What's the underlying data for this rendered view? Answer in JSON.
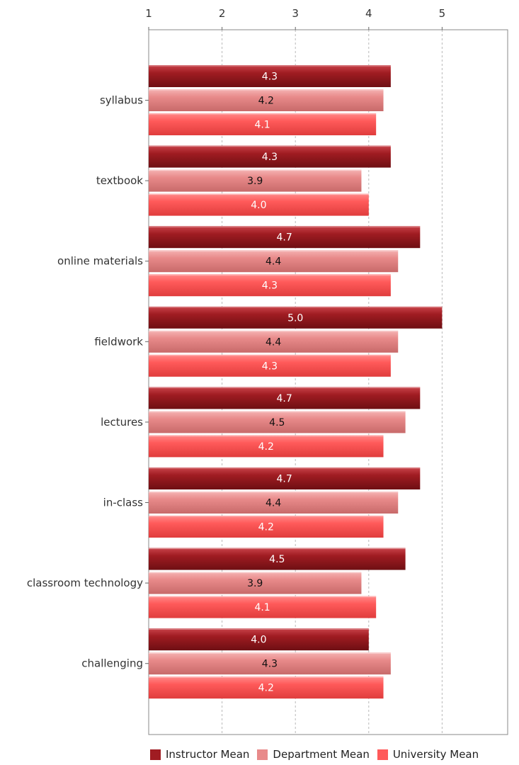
{
  "chart_data": {
    "type": "bar",
    "orientation": "horizontal",
    "xlim": [
      1,
      5
    ],
    "x_ticks": [
      "1",
      "2",
      "3",
      "4",
      "5"
    ],
    "grid": true,
    "legend_position": "bottom",
    "categories": [
      "syllabus",
      "textbook",
      "online materials",
      "fieldwork",
      "lectures",
      "in-class ",
      "classroom technology",
      "challenging"
    ],
    "series": [
      {
        "name": "Instructor Mean",
        "color": "#a01c22",
        "label_color": "#ffffff",
        "values": [
          4.3,
          4.3,
          4.7,
          5.0,
          4.7,
          4.7,
          4.5,
          4.0
        ],
        "labels": [
          "4.3",
          "4.3",
          "4.7",
          "5.0",
          "4.7",
          "4.7",
          "4.5",
          "4.0"
        ]
      },
      {
        "name": "Department Mean",
        "color": "#e88a8a",
        "label_color": "#111111",
        "values": [
          4.2,
          3.9,
          4.4,
          4.4,
          4.5,
          4.4,
          3.9,
          4.3
        ],
        "labels": [
          "4.2",
          "3.9",
          "4.4",
          "4.4",
          "4.5",
          "4.4",
          "3.9",
          "4.3"
        ]
      },
      {
        "name": "University Mean",
        "color": "#ff5a5a",
        "label_color": "#ffffff",
        "values": [
          4.1,
          4.0,
          4.3,
          4.3,
          4.2,
          4.2,
          4.1,
          4.2
        ],
        "labels": [
          "4.1",
          "4.0",
          "4.3",
          "4.3",
          "4.2",
          "4.2",
          "4.1",
          "4.2"
        ]
      }
    ]
  }
}
